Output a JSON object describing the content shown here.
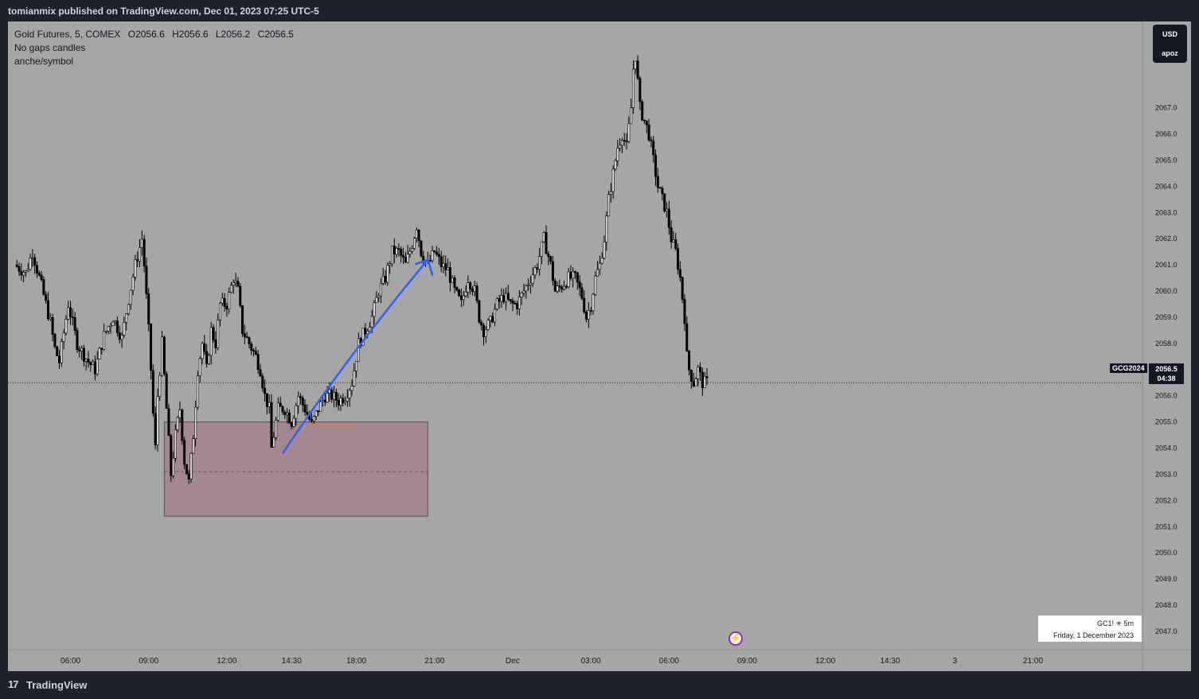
{
  "header": {
    "publisher_line": "tomianmix published on TradingView.com, Dec 01, 2023 07:25 UTC-5"
  },
  "legend": {
    "title": "Gold Futures, 5, COMEX",
    "open": "O2056.6",
    "high": "H2056.6",
    "low": "L2056.2",
    "close": "C2056.5",
    "line2": "No gaps candles",
    "line3": "anche/symbol"
  },
  "currency_box": {
    "currency": "USD",
    "label": "apoz"
  },
  "last_price": {
    "symbol": "GCG2024",
    "price": "2056.5",
    "countdown": "04:38",
    "value": 2056.5
  },
  "info_box": {
    "line1": "GC1! ✳ 5m",
    "line2": "Friday, 1 December 2023"
  },
  "footer": {
    "logo": "17",
    "brand": "TradingView"
  },
  "colors": {
    "bull": "#e8e8e8",
    "bear": "#000000",
    "wick": "#000000",
    "zone": "#a3888f",
    "arrow": "#2962ff",
    "background": "#a6a6a6"
  },
  "icons": {
    "alert": "lightning-icon"
  },
  "chart_data": {
    "type": "candlestick",
    "ylim": [
      2046.3,
      2070.3
    ],
    "y_ticks": [
      "2047.0",
      "2048.0",
      "2049.0",
      "2050.0",
      "2051.0",
      "2052.0",
      "2053.0",
      "2054.0",
      "2055.0",
      "2056.0",
      "2057.0",
      "2058.0",
      "2059.0",
      "2060.0",
      "2061.0",
      "2062.0",
      "2063.0",
      "2064.0",
      "2065.0",
      "2066.0",
      "2067.0"
    ],
    "x_ticks": [
      "06:00",
      "09:00",
      "12:00",
      "14:30",
      "18:00",
      "21:00",
      "Dec",
      "03:00",
      "06:00",
      "09:00",
      "12:00",
      "14:30",
      "3",
      "21:00"
    ],
    "x_tick_index": [
      25,
      60,
      95,
      124,
      153,
      188,
      223,
      258,
      293,
      328,
      363,
      392,
      421,
      456
    ],
    "index_range": [
      -3,
      505
    ],
    "close_path": [
      [
        0,
        2061.0
      ],
      [
        5,
        2060.7
      ],
      [
        8,
        2061.5
      ],
      [
        12,
        2060.2
      ],
      [
        16,
        2058.8
      ],
      [
        18,
        2057.8
      ],
      [
        20,
        2057.3
      ],
      [
        24,
        2059.5
      ],
      [
        28,
        2058.0
      ],
      [
        30,
        2057.7
      ],
      [
        33,
        2057.3
      ],
      [
        36,
        2057.0
      ],
      [
        40,
        2058.3
      ],
      [
        44,
        2059.0
      ],
      [
        48,
        2058.2
      ],
      [
        51,
        2059.7
      ],
      [
        54,
        2061.0
      ],
      [
        57,
        2062.0
      ],
      [
        58,
        2061.0
      ],
      [
        60,
        2058.5
      ],
      [
        61,
        2057.0
      ],
      [
        62,
        2055.3
      ],
      [
        63,
        2054.0
      ],
      [
        64,
        2056.0
      ],
      [
        66,
        2058.0
      ],
      [
        68,
        2055.5
      ],
      [
        70,
        2053.0
      ],
      [
        72,
        2054.5
      ],
      [
        74,
        2055.5
      ],
      [
        76,
        2053.5
      ],
      [
        78,
        2052.7
      ],
      [
        80,
        2054.5
      ],
      [
        82,
        2057.0
      ],
      [
        84,
        2058.0
      ],
      [
        86,
        2057.0
      ],
      [
        88,
        2058.5
      ],
      [
        90,
        2058.0
      ],
      [
        92,
        2059.5
      ],
      [
        95,
        2059.5
      ],
      [
        98,
        2060.5
      ],
      [
        100,
        2060.0
      ],
      [
        102,
        2058.5
      ],
      [
        105,
        2058.0
      ],
      [
        108,
        2057.5
      ],
      [
        110,
        2057.0
      ],
      [
        112,
        2056.0
      ],
      [
        114,
        2055.5
      ],
      [
        115,
        2054.0
      ],
      [
        118,
        2055.5
      ],
      [
        121,
        2055.5
      ],
      [
        124,
        2055.0
      ],
      [
        127,
        2056.0
      ],
      [
        130,
        2055.5
      ],
      [
        133,
        2054.9
      ],
      [
        136,
        2055.5
      ],
      [
        139,
        2056.0
      ],
      [
        142,
        2056.0
      ],
      [
        145,
        2055.8
      ],
      [
        148,
        2056.0
      ],
      [
        151,
        2056.5
      ],
      [
        154,
        2058.0
      ],
      [
        157,
        2058.5
      ],
      [
        160,
        2059.0
      ],
      [
        163,
        2060.0
      ],
      [
        166,
        2060.5
      ],
      [
        169,
        2061.5
      ],
      [
        172,
        2061.5
      ],
      [
        175,
        2061.0
      ],
      [
        178,
        2061.8
      ],
      [
        180,
        2062.5
      ],
      [
        182,
        2061.5
      ],
      [
        185,
        2061.0
      ],
      [
        188,
        2061.5
      ],
      [
        191,
        2061.0
      ],
      [
        194,
        2060.8
      ],
      [
        197,
        2060.0
      ],
      [
        200,
        2059.5
      ],
      [
        203,
        2060.5
      ],
      [
        206,
        2060.0
      ],
      [
        208,
        2059.0
      ],
      [
        210,
        2058.5
      ],
      [
        213,
        2058.8
      ],
      [
        216,
        2059.5
      ],
      [
        219,
        2059.8
      ],
      [
        222,
        2059.5
      ],
      [
        225,
        2059.5
      ],
      [
        228,
        2060.0
      ],
      [
        231,
        2060.5
      ],
      [
        234,
        2061.0
      ],
      [
        237,
        2062.0
      ],
      [
        240,
        2061.0
      ],
      [
        242,
        2060.0
      ],
      [
        245,
        2060.2
      ],
      [
        248,
        2060.5
      ],
      [
        251,
        2060.5
      ],
      [
        254,
        2059.8
      ],
      [
        256,
        2059.0
      ],
      [
        258,
        2059.5
      ],
      [
        260,
        2060.5
      ],
      [
        262,
        2061.0
      ],
      [
        264,
        2062.0
      ],
      [
        266,
        2063.5
      ],
      [
        268,
        2064.5
      ],
      [
        270,
        2065.5
      ],
      [
        272,
        2066.0
      ],
      [
        274,
        2065.5
      ],
      [
        276,
        2067.0
      ],
      [
        277,
        2068.5
      ],
      [
        278,
        2069.0
      ],
      [
        279,
        2068.0
      ],
      [
        280,
        2067.0
      ],
      [
        282,
        2066.5
      ],
      [
        284,
        2066.0
      ],
      [
        286,
        2065.0
      ],
      [
        288,
        2064.0
      ],
      [
        290,
        2063.5
      ],
      [
        292,
        2063.0
      ],
      [
        294,
        2062.0
      ],
      [
        296,
        2061.5
      ],
      [
        298,
        2060.5
      ],
      [
        300,
        2059.0
      ],
      [
        301,
        2057.5
      ],
      [
        302,
        2057.0
      ],
      [
        304,
        2056.5
      ],
      [
        306,
        2057.0
      ],
      [
        308,
        2056.5
      ],
      [
        310,
        2056.5
      ]
    ],
    "zone": {
      "x0": 67,
      "x1": 185,
      "y_top": 2055.0,
      "y_bottom": 2051.4,
      "mid": 2053.1
    },
    "orange_line": {
      "x0": 130,
      "x1": 153,
      "y": 2054.9
    },
    "arrow": {
      "start": [
        120,
        2053.8
      ],
      "end": [
        185,
        2061.2
      ]
    }
  }
}
